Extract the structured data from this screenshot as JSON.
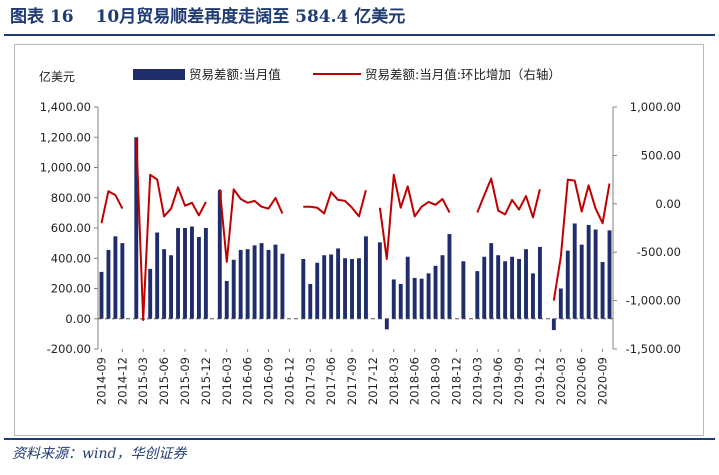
{
  "figure": {
    "label": "图表 16",
    "title": "10月贸易顺差再度走阔至 584.4 亿美元",
    "source": "资料来源：wind，华创证券"
  },
  "chart_data": {
    "type": "bar+line",
    "unit_label": "亿美元",
    "categories": [
      "2014-09",
      "2014-10",
      "2014-11",
      "2014-12",
      "2015-01",
      "2015-02",
      "2015-03",
      "2015-04",
      "2015-05",
      "2015-06",
      "2015-07",
      "2015-08",
      "2015-09",
      "2015-10",
      "2015-11",
      "2015-12",
      "2016-01",
      "2016-02",
      "2016-03",
      "2016-04",
      "2016-05",
      "2016-06",
      "2016-07",
      "2016-08",
      "2016-09",
      "2016-10",
      "2016-11",
      "2016-12",
      "2017-01",
      "2017-02",
      "2017-03",
      "2017-04",
      "2017-05",
      "2017-06",
      "2017-07",
      "2017-08",
      "2017-09",
      "2017-10",
      "2017-11",
      "2017-12",
      "2018-01",
      "2018-02",
      "2018-03",
      "2018-04",
      "2018-05",
      "2018-06",
      "2018-07",
      "2018-08",
      "2018-09",
      "2018-10",
      "2018-11",
      "2018-12",
      "2019-01",
      "2019-02",
      "2019-03",
      "2019-04",
      "2019-05",
      "2019-06",
      "2019-07",
      "2019-08",
      "2019-09",
      "2019-10",
      "2019-11",
      "2019-12",
      "2020-01",
      "2020-02",
      "2020-03",
      "2020-04",
      "2020-05",
      "2020-06",
      "2020-07",
      "2020-08",
      "2020-09",
      "2020-10"
    ],
    "x_tick_labels": [
      "2014-09",
      "2014-12",
      "2015-03",
      "2015-06",
      "2015-09",
      "2015-12",
      "2016-03",
      "2016-06",
      "2016-09",
      "2016-12",
      "2017-03",
      "2017-06",
      "2017-09",
      "2017-12",
      "2018-03",
      "2018-06",
      "2018-09",
      "2018-12",
      "2019-03",
      "2019-06",
      "2019-09",
      "2019-12",
      "2020-03",
      "2020-06",
      "2020-09"
    ],
    "series": [
      {
        "name": "贸易差额:当月值",
        "type": "bar",
        "axis": "left",
        "color": "#1f2d6b",
        "values": [
          310,
          455,
          545,
          500,
          null,
          1200,
          -5,
          330,
          570,
          460,
          420,
          600,
          600,
          610,
          540,
          600,
          null,
          850,
          250,
          390,
          455,
          460,
          485,
          500,
          455,
          490,
          430,
          null,
          null,
          395,
          230,
          370,
          420,
          425,
          465,
          400,
          395,
          400,
          545,
          null,
          505,
          -70,
          260,
          230,
          410,
          270,
          265,
          300,
          350,
          420,
          560,
          null,
          380,
          null,
          315,
          410,
          500,
          420,
          380,
          410,
          395,
          460,
          300,
          475,
          null,
          -75,
          200,
          450,
          630,
          490,
          620,
          590,
          375,
          584.4
        ]
      },
      {
        "name": "贸易差额:当月值:环比增加（右轴）",
        "type": "line",
        "axis": "right",
        "color": "#c00000",
        "values": [
          -200,
          130,
          90,
          -50,
          null,
          680,
          -1200,
          300,
          250,
          -130,
          -50,
          170,
          -20,
          10,
          -120,
          20,
          null,
          150,
          -600,
          150,
          50,
          10,
          30,
          -30,
          -50,
          60,
          -100,
          null,
          null,
          -30,
          -30,
          -40,
          -100,
          120,
          40,
          30,
          -40,
          -130,
          140,
          null,
          -40,
          -570,
          300,
          -40,
          180,
          -130,
          -30,
          20,
          -10,
          50,
          -90,
          null,
          -130,
          null,
          -90,
          90,
          260,
          -70,
          -110,
          40,
          -60,
          80,
          -140,
          150,
          null,
          -1000,
          -550,
          250,
          240,
          -80,
          190,
          -50,
          -200,
          210
        ]
      }
    ],
    "y_left": {
      "min": -200,
      "max": 1400,
      "ticks": [
        -200,
        0,
        200,
        400,
        600,
        800,
        1000,
        1200,
        1400
      ],
      "tick_labels": [
        "-200.00",
        "0.00",
        "200.00",
        "400.00",
        "600.00",
        "800.00",
        "1,000.00",
        "1,200.00",
        "1,400.00"
      ]
    },
    "y_right": {
      "min": -1500,
      "max": 1000,
      "ticks": [
        -1500,
        -1000,
        -500,
        0,
        500,
        1000
      ],
      "tick_labels": [
        "-1,500.00",
        "-1,000.00",
        "-500.00",
        "0.00",
        "500.00",
        "1,000.00"
      ]
    },
    "legend_position": "top"
  }
}
